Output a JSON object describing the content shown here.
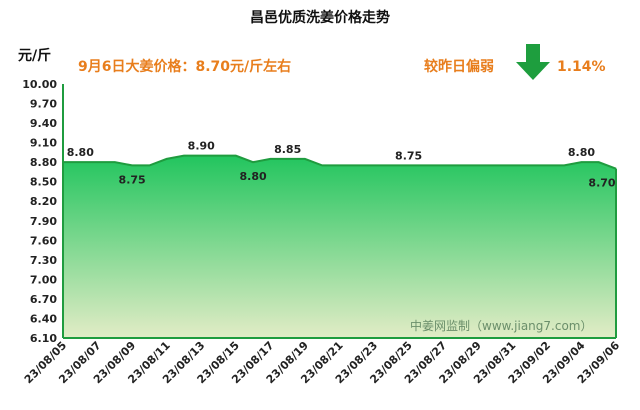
{
  "chart_data": {
    "type": "area",
    "title": "昌邑优质洗姜价格走势",
    "ylabel": "元/斤",
    "xlabel": "",
    "ylim": [
      6.1,
      10.0
    ],
    "yticks": [
      "10.00",
      "9.70",
      "9.40",
      "9.10",
      "8.80",
      "8.50",
      "8.20",
      "7.90",
      "7.60",
      "7.30",
      "7.00",
      "6.70",
      "6.40",
      "6.10"
    ],
    "x": [
      "23/08/05",
      "23/08/06",
      "23/08/07",
      "23/08/08",
      "23/08/09",
      "23/08/10",
      "23/08/11",
      "23/08/12",
      "23/08/13",
      "23/08/14",
      "23/08/15",
      "23/08/16",
      "23/08/17",
      "23/08/18",
      "23/08/19",
      "23/08/20",
      "23/08/21",
      "23/08/22",
      "23/08/23",
      "23/08/24",
      "23/08/25",
      "23/08/26",
      "23/08/27",
      "23/08/28",
      "23/08/29",
      "23/08/30",
      "23/08/31",
      "23/09/01",
      "23/09/02",
      "23/09/03",
      "23/09/04",
      "23/09/05",
      "23/09/06"
    ],
    "xtick_labels": [
      "23/08/05",
      "23/08/07",
      "23/08/09",
      "23/08/11",
      "23/08/13",
      "23/08/15",
      "23/08/17",
      "23/08/19",
      "23/08/21",
      "23/08/23",
      "23/08/25",
      "23/08/27",
      "23/08/29",
      "23/08/31",
      "23/09/02",
      "23/09/04",
      "23/09/06"
    ],
    "values": [
      8.8,
      8.8,
      8.8,
      8.8,
      8.75,
      8.75,
      8.85,
      8.9,
      8.9,
      8.9,
      8.9,
      8.8,
      8.85,
      8.85,
      8.85,
      8.75,
      8.75,
      8.75,
      8.75,
      8.75,
      8.75,
      8.75,
      8.75,
      8.75,
      8.75,
      8.75,
      8.75,
      8.75,
      8.75,
      8.75,
      8.8,
      8.8,
      8.7
    ],
    "data_labels": [
      {
        "x": "23/08/06",
        "text": "8.80"
      },
      {
        "x": "23/08/09",
        "text": "8.75"
      },
      {
        "x": "23/08/13",
        "text": "8.90"
      },
      {
        "x": "23/08/16",
        "text": "8.80"
      },
      {
        "x": "23/08/18",
        "text": "8.85"
      },
      {
        "x": "23/08/25",
        "text": "8.75"
      },
      {
        "x": "23/09/04",
        "text": "8.80"
      },
      {
        "x": "23/09/06",
        "text": "8.70"
      }
    ],
    "grid": false,
    "colors": {
      "fill_top": "#22c55e",
      "fill_bottom": "#e2ecc6",
      "line": "#1f9c3f",
      "accent": "#e87e1d",
      "arrow": "#1e9e3e"
    }
  },
  "annotations": {
    "price_note": "9月6日大姜价格：8.70元/斤左右",
    "compare_label": "较昨日偏弱",
    "change_pct": "1.14%",
    "watermark": "中姜网监制（www.jiang7.com）"
  }
}
